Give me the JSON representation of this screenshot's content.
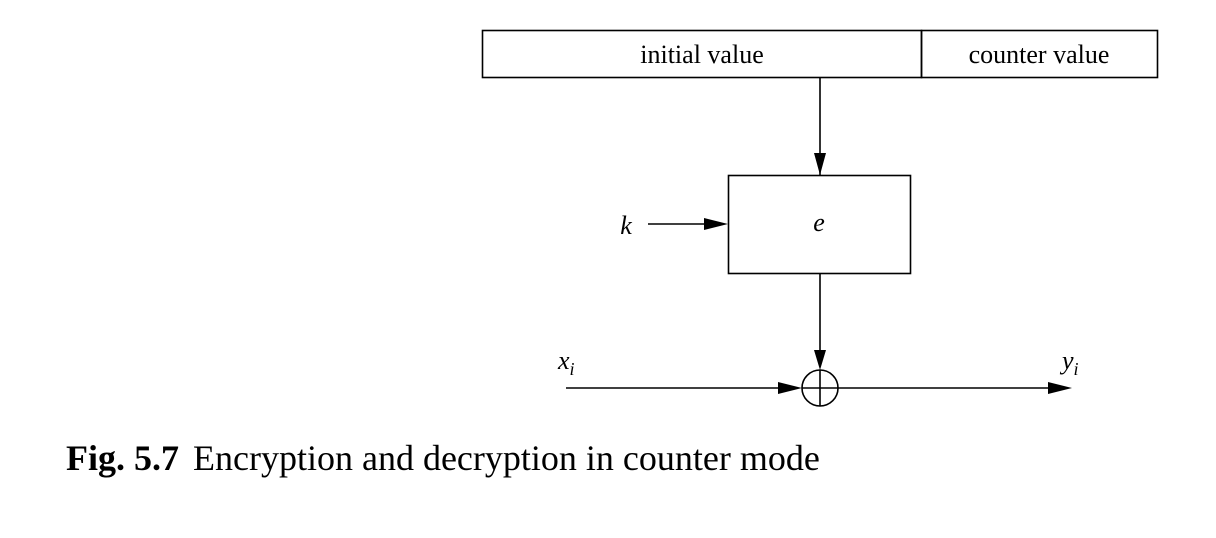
{
  "diagram": {
    "register": {
      "initial_value_label": "initial value",
      "counter_value_label": "counter value"
    },
    "encryption_block_label": "e",
    "key_label": "k",
    "plaintext": {
      "symbol": "x",
      "subscript": "i"
    },
    "ciphertext": {
      "symbol": "y",
      "subscript": "i"
    },
    "xor_symbol": "⊕"
  },
  "caption": {
    "figure_number": "Fig. 5.7",
    "text": "Encryption and decryption in counter mode"
  }
}
